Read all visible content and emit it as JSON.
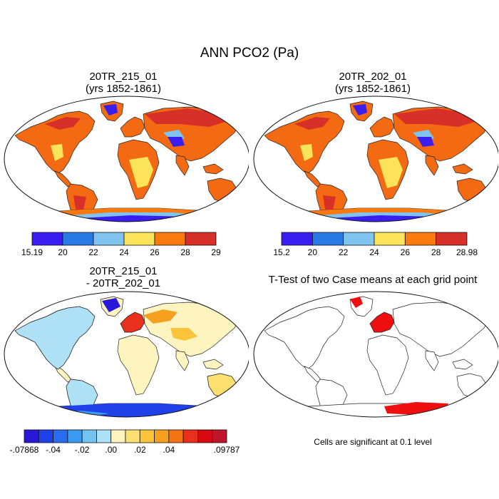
{
  "figure": {
    "title": "ANN PCO2 (Pa)"
  },
  "panels": [
    {
      "id": "p1",
      "title_line1": "20TR_215_01",
      "title_line2": "(yrs 1852-1861)"
    },
    {
      "id": "p2",
      "title_line1": "20TR_202_01",
      "title_line2": "(yrs 1852-1861)"
    },
    {
      "id": "p3",
      "title_line1": "20TR_215_01",
      "title_line2": "- 20TR_202_01"
    },
    {
      "id": "p4",
      "title_line1": "T-Test of two Case means at each grid point",
      "title_line2": ""
    }
  ],
  "colorbars": {
    "cb1": {
      "colors": [
        "#3a1ef0",
        "#2a7ae6",
        "#7ec4ee",
        "#fbe35a",
        "#fb7a10",
        "#d63028"
      ],
      "labels": [
        "15.19",
        "20",
        "22",
        "24",
        "26",
        "28",
        "29"
      ]
    },
    "cb2": {
      "colors": [
        "#3a1ef0",
        "#2a7ae6",
        "#7ec4ee",
        "#fbe35a",
        "#fb7a10",
        "#d63028"
      ],
      "labels": [
        "15.2",
        "20",
        "22",
        "24",
        "26",
        "28",
        "28.98"
      ]
    },
    "cb3": {
      "colors": [
        "#2a18d8",
        "#2040e8",
        "#2a6cf0",
        "#3a9af2",
        "#74c2f0",
        "#aee0f6",
        "#fdf4c0",
        "#fbe070",
        "#fbc43a",
        "#f6a020",
        "#f47414",
        "#e8301c",
        "#d60a10",
        "#c01428"
      ],
      "labels": [
        "-.07868",
        "-.04",
        "-.02",
        ".00",
        ".02",
        ".04",
        ".09787"
      ],
      "label_positions": [
        0,
        2,
        4,
        6,
        8,
        10,
        14
      ]
    }
  },
  "significance_note": "Cells are significant at 0.1 level"
}
